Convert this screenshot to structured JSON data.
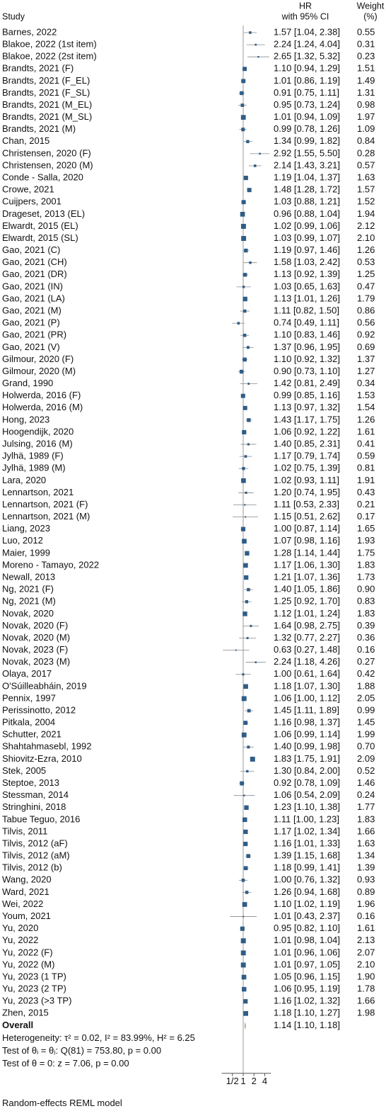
{
  "chart_data": {
    "type": "forest",
    "headers": {
      "study": "Study",
      "hr": [
        "HR",
        "with 95% CI"
      ],
      "weight": [
        "Weight",
        "(%)"
      ]
    },
    "categories": [
      "Barnes, 2022",
      "Blakoe, 2022 (1st item)",
      "Blakoe, 2022 (2st item)",
      "Brandts, 2021 (F)",
      "Brandts, 2021 (F_EL)",
      "Brandts, 2021 (F_SL)",
      "Brandts, 2021 (M_EL)",
      "Brandts, 2021 (M_SL)",
      "Brandts, 2021 (M)",
      "Chan, 2015",
      "Christensen, 2020 (F)",
      "Christensen, 2020 (M)",
      "Conde - Salla, 2020",
      "Crowe, 2021",
      "Cuijpers, 2001",
      "Drageset, 2013 (EL)",
      "Elwardt, 2015 (EL)",
      "Elwardt, 2015 (SL)",
      "Gao, 2021 (C)",
      "Gao, 2021 (CH)",
      "Gao, 2021 (DR)",
      "Gao, 2021 (IN)",
      "Gao, 2021 (LA)",
      "Gao, 2021 (M)",
      "Gao, 2021 (P)",
      "Gao, 2021 (PR)",
      "Gao, 2021 (V)",
      "Gilmour, 2020 (F)",
      "Gilmour, 2020 (M)",
      "Grand, 1990",
      "Holwerda, 2016 (F)",
      "Holwerda, 2016 (M)",
      "Hong, 2023",
      "Hoogendijk, 2020",
      "Julsing, 2016 (M)",
      "Jylhä, 1989 (F)",
      "Jylhä, 1989 (M)",
      "Lara, 2020",
      "Lennartson, 2021",
      "Lennartson, 2021 (F)",
      "Lennartson, 2021 (M)",
      "Liang, 2023",
      "Luo, 2012",
      "Maier, 1999",
      "Moreno - Tamayo, 2022",
      "Newall, 2013",
      "Ng, 2021 (F)",
      "Ng, 2021 (M)",
      "Novak, 2020",
      "Novak, 2020 (F)",
      "Novak, 2020 (M)",
      "Novak, 2023 (F)",
      "Novak, 2023 (M)",
      "Olaya, 2017",
      "O'Súilleabháin, 2019",
      "Pennix, 1997",
      "Perissinotto, 2012",
      "Pitkala, 2004",
      "Schutter, 2021",
      "Shahtahmasebl, 1992",
      "Shiovitz-Ezra, 2010",
      "Stek, 2005",
      "Steptoe, 2013",
      "Stessman, 2014",
      "Stringhini, 2018",
      "Tabue Teguo, 2016",
      "Tilvis, 2011",
      "Tilvis, 2012 (aF)",
      "Tilvis, 2012 (aM)",
      "Tilvis, 2012 (b)",
      "Wang, 2020",
      "Ward, 2021",
      "Wei, 2022",
      "Youm, 2021",
      "Yu, 2020",
      "Yu, 2022",
      "Yu, 2022 (F)",
      "Yu, 2022 (M)",
      "Yu, 2023 (1 TP)",
      "Yu, 2023 (2 TP)",
      "Yu, 2023 (>3 TP)",
      "Zhen, 2015"
    ],
    "hr": [
      1.57,
      2.24,
      2.65,
      1.1,
      1.01,
      0.91,
      0.95,
      1.01,
      0.99,
      1.34,
      2.92,
      2.14,
      1.19,
      1.48,
      1.03,
      0.96,
      1.02,
      1.03,
      1.19,
      1.58,
      1.13,
      1.03,
      1.13,
      1.11,
      0.74,
      1.1,
      1.37,
      1.1,
      0.9,
      1.42,
      0.99,
      1.13,
      1.43,
      1.06,
      1.4,
      1.17,
      1.02,
      1.02,
      1.2,
      1.11,
      1.15,
      1.0,
      1.07,
      1.28,
      1.17,
      1.21,
      1.4,
      1.25,
      1.12,
      1.64,
      1.32,
      0.63,
      2.24,
      1.0,
      1.18,
      1.06,
      1.45,
      1.16,
      1.06,
      1.4,
      1.83,
      1.3,
      0.92,
      1.06,
      1.23,
      1.11,
      1.17,
      1.16,
      1.39,
      1.18,
      1.0,
      1.26,
      1.1,
      1.01,
      0.95,
      1.01,
      1.01,
      1.01,
      1.05,
      1.06,
      1.16,
      1.18
    ],
    "lower": [
      1.04,
      1.24,
      1.32,
      0.94,
      0.86,
      0.75,
      0.73,
      0.94,
      0.78,
      0.99,
      1.55,
      1.43,
      1.04,
      1.28,
      0.88,
      0.88,
      0.99,
      0.99,
      0.97,
      1.03,
      0.92,
      0.65,
      1.01,
      0.82,
      0.49,
      0.83,
      0.96,
      0.92,
      0.73,
      0.81,
      0.85,
      0.97,
      1.17,
      0.92,
      0.85,
      0.79,
      0.75,
      0.93,
      0.74,
      0.53,
      0.51,
      0.87,
      0.98,
      1.14,
      1.06,
      1.07,
      1.05,
      0.92,
      1.01,
      0.98,
      0.77,
      0.27,
      1.18,
      0.61,
      1.07,
      1.0,
      1.11,
      0.98,
      0.99,
      0.99,
      1.75,
      0.84,
      0.78,
      0.54,
      1.1,
      1.0,
      1.02,
      1.01,
      1.15,
      0.99,
      0.76,
      0.94,
      1.02,
      0.43,
      0.82,
      0.98,
      0.96,
      0.97,
      0.96,
      0.95,
      1.02,
      1.1
    ],
    "upper": [
      2.38,
      4.04,
      5.32,
      1.29,
      1.19,
      1.11,
      1.24,
      1.09,
      1.26,
      1.82,
      5.5,
      3.21,
      1.37,
      1.72,
      1.21,
      1.04,
      1.06,
      1.07,
      1.46,
      2.42,
      1.39,
      1.63,
      1.26,
      1.5,
      1.11,
      1.46,
      1.95,
      1.32,
      1.1,
      2.49,
      1.16,
      1.32,
      1.75,
      1.22,
      2.31,
      1.74,
      1.39,
      1.11,
      1.95,
      2.33,
      2.62,
      1.14,
      1.16,
      1.44,
      1.3,
      1.36,
      1.86,
      1.7,
      1.24,
      2.75,
      2.27,
      1.48,
      4.26,
      1.64,
      1.3,
      1.12,
      1.89,
      1.37,
      1.14,
      1.98,
      1.91,
      2.0,
      1.09,
      2.09,
      1.38,
      1.23,
      1.34,
      1.33,
      1.68,
      1.41,
      1.32,
      1.68,
      1.19,
      2.37,
      1.1,
      1.04,
      1.06,
      1.05,
      1.15,
      1.19,
      1.32,
      1.27
    ],
    "value_labels": [
      "1.57 [1.04, 2.38]",
      "2.24 [1.24, 4.04]",
      "2.65 [1.32, 5.32]",
      "1.10 [0.94, 1.29]",
      "1.01 [0.86, 1.19]",
      "0.91 [0.75, 1.11]",
      "0.95 [0.73, 1.24]",
      "1.01 [0.94, 1.09]",
      "0.99 [0.78, 1.26]",
      "1.34 [0.99, 1.82]",
      "2.92 [1.55, 5.50]",
      "2.14 [1.43, 3.21]",
      "1.19 [1.04, 1.37]",
      "1.48 [1.28, 1.72]",
      "1.03 [0.88, 1.21]",
      "0.96 [0.88, 1.04]",
      "1.02 [0.99, 1.06]",
      "1.03 [0.99, 1.07]",
      "1.19 [0.97, 1.46]",
      "1.58 [1.03, 2.42]",
      "1.13 [0.92, 1.39]",
      "1.03 [0.65, 1.63]",
      "1.13 [1.01, 1.26]",
      "1.11 [0.82, 1.50]",
      "0.74 [0.49, 1.11]",
      "1.10 [0.83, 1.46]",
      "1.37 [0.96, 1.95]",
      "1.10 [0.92, 1.32]",
      "0.90 [0.73, 1.10]",
      "1.42 [0.81, 2.49]",
      "0.99 [0.85, 1.16]",
      "1.13 [0.97, 1.32]",
      "1.43 [1.17, 1.75]",
      "1.06 [0.92, 1.22]",
      "1.40 [0.85, 2.31]",
      "1.17 [0.79, 1.74]",
      "1.02 [0.75, 1.39]",
      "1.02 [0.93, 1.11]",
      "1.20 [0.74, 1.95]",
      "1.11 [0.53, 2.33]",
      "1.15 [0.51, 2.62]",
      "1.00 [0.87, 1.14]",
      "1.07 [0.98, 1.16]",
      "1.28 [1.14, 1.44]",
      "1.17 [1.06, 1.30]",
      "1.21 [1.07, 1.36]",
      "1.40 [1.05, 1.86]",
      "1.25 [0.92, 1.70]",
      "1.12 [1.01, 1.24]",
      "1.64 [0.98, 2.75]",
      "1.32 [0.77, 2.27]",
      "0.63 [0.27, 1.48]",
      "2.24 [1.18, 4.26]",
      "1.00 [0.61, 1.64]",
      "1.18 [1.07, 1.30]",
      "1.06 [1.00, 1.12]",
      "1.45 [1.11, 1.89]",
      "1.16 [0.98, 1.37]",
      "1.06 [0.99, 1.14]",
      "1.40 [0.99, 1.98]",
      "1.83 [1.75, 1.91]",
      "1.30 [0.84, 2.00]",
      "0.92 [0.78, 1.09]",
      "1.06 [0.54, 2.09]",
      "1.23 [1.10, 1.38]",
      "1.11 [1.00, 1.23]",
      "1.17 [1.02, 1.34]",
      "1.16 [1.01, 1.33]",
      "1.39 [1.15, 1.68]",
      "1.18 [0.99, 1.41]",
      "1.00 [0.76, 1.32]",
      "1.26 [0.94, 1.68]",
      "1.10 [1.02, 1.19]",
      "1.01 [0.43, 2.37]",
      "0.95 [0.82, 1.10]",
      "1.01 [0.98, 1.04]",
      "1.01 [0.96, 1.06]",
      "1.01 [0.97, 1.05]",
      "1.05 [0.96, 1.15]",
      "1.06 [0.95, 1.19]",
      "1.16 [1.02, 1.32]",
      "1.18 [1.10, 1.27]"
    ],
    "weights": [
      0.55,
      0.31,
      0.23,
      1.51,
      1.49,
      1.31,
      0.98,
      1.97,
      1.09,
      0.84,
      0.28,
      0.57,
      1.63,
      1.57,
      1.52,
      1.94,
      2.12,
      2.1,
      1.26,
      0.53,
      1.25,
      0.47,
      1.79,
      0.86,
      0.56,
      0.92,
      0.69,
      1.37,
      1.27,
      0.34,
      1.53,
      1.54,
      1.26,
      1.61,
      0.41,
      0.59,
      0.81,
      1.91,
      0.43,
      0.21,
      0.17,
      1.65,
      1.93,
      1.75,
      1.83,
      1.73,
      0.9,
      0.83,
      1.83,
      0.39,
      0.36,
      0.16,
      0.27,
      0.42,
      1.88,
      2.05,
      0.99,
      1.45,
      1.99,
      0.7,
      2.09,
      0.52,
      1.46,
      0.24,
      1.77,
      1.83,
      1.66,
      1.63,
      1.34,
      1.39,
      0.93,
      0.89,
      1.96,
      0.16,
      1.61,
      2.13,
      2.07,
      2.1,
      1.9,
      1.78,
      1.66,
      1.98
    ],
    "weight_labels": [
      "0.55",
      "0.31",
      "0.23",
      "1.51",
      "1.49",
      "1.31",
      "0.98",
      "1.97",
      "1.09",
      "0.84",
      "0.28",
      "0.57",
      "1.63",
      "1.57",
      "1.52",
      "1.94",
      "2.12",
      "2.10",
      "1.26",
      "0.53",
      "1.25",
      "0.47",
      "1.79",
      "0.86",
      "0.56",
      "0.92",
      "0.69",
      "1.37",
      "1.27",
      "0.34",
      "1.53",
      "1.54",
      "1.26",
      "1.61",
      "0.41",
      "0.59",
      "0.81",
      "1.91",
      "0.43",
      "0.21",
      "0.17",
      "1.65",
      "1.93",
      "1.75",
      "1.83",
      "1.73",
      "0.90",
      "0.83",
      "1.83",
      "0.39",
      "0.36",
      "0.16",
      "0.27",
      "0.42",
      "1.88",
      "2.05",
      "0.99",
      "1.45",
      "1.99",
      "0.70",
      "2.09",
      "0.52",
      "1.46",
      "0.24",
      "1.77",
      "1.83",
      "1.66",
      "1.63",
      "1.34",
      "1.39",
      "0.93",
      "0.89",
      "1.96",
      "0.16",
      "1.61",
      "2.13",
      "2.07",
      "2.10",
      "1.90",
      "1.78",
      "1.66",
      "1.98"
    ],
    "overall": {
      "name": "Overall",
      "hr": 1.14,
      "lower": 1.1,
      "upper": 1.18,
      "label": "1.14 [1.10, 1.18]"
    },
    "notes": [
      "Heterogeneity: τ² = 0.02, I² = 83.99%, H² = 6.25",
      "Test of θᵢ = θⱼ: Q(81) = 753.80, p = 0.00",
      "Test of θ = 0: z = 7.06, p = 0.00"
    ],
    "model": "Random-effects REML model",
    "xscale": "log",
    "xlim": [
      0.25,
      6
    ],
    "xticks": [
      {
        "value": 0.5,
        "label": "1/2"
      },
      1,
      2,
      4
    ],
    "reference": 1,
    "color": "#2f5d87",
    "ci_color": "#8a8a8a"
  }
}
